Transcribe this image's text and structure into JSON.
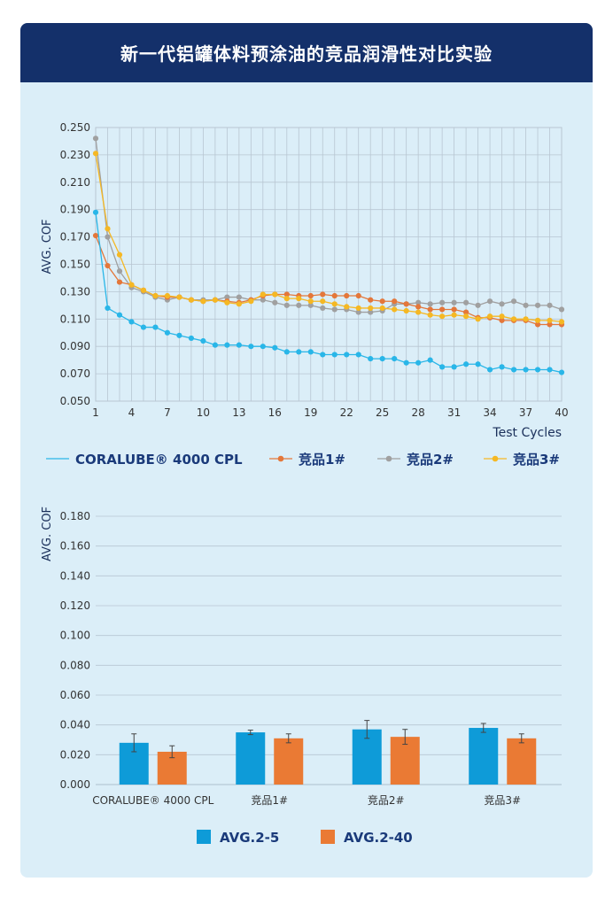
{
  "header": {
    "title": "新一代铝罐体料预涂油的竞品润滑性对比实验"
  },
  "colors": {
    "header_bg": "#14306a",
    "panel_bg": "#dbeef8",
    "coralube": "#29b6e8",
    "comp1": "#e4773a",
    "comp2": "#a0a0a0",
    "comp3": "#f5b824",
    "bar_a": "#0e9bd8",
    "bar_b": "#ea7a34"
  },
  "chart_data": [
    {
      "type": "line",
      "ylabel": "AVG. COF",
      "xlabel": "Test Cycles",
      "ylim": [
        0.05,
        0.25
      ],
      "yticks": [
        "0.050",
        "0.070",
        "0.090",
        "0.110",
        "0.130",
        "0.150",
        "0.170",
        "0.190",
        "0.210",
        "0.230",
        "0.250"
      ],
      "xlim": [
        1,
        40
      ],
      "xticks": [
        "1",
        "4",
        "7",
        "10",
        "13",
        "16",
        "19",
        "22",
        "25",
        "28",
        "31",
        "34",
        "37",
        "40"
      ],
      "grid": true,
      "legend": "bottom",
      "series": [
        {
          "name": "CORALUBE® 4000 CPL",
          "color": "#29b6e8",
          "marker": "circle",
          "values": [
            0.188,
            0.118,
            0.113,
            0.108,
            0.104,
            0.104,
            0.1,
            0.098,
            0.096,
            0.094,
            0.091,
            0.091,
            0.091,
            0.09,
            0.09,
            0.089,
            0.086,
            0.086,
            0.086,
            0.084,
            0.084,
            0.084,
            0.084,
            0.081,
            0.081,
            0.081,
            0.078,
            0.078,
            0.08,
            0.075,
            0.075,
            0.077,
            0.077,
            0.073,
            0.075,
            0.073,
            0.073,
            0.073,
            0.073,
            0.071
          ]
        },
        {
          "name": "竞品1#",
          "color": "#e4773a",
          "marker": "circle",
          "values": [
            0.171,
            0.149,
            0.137,
            0.135,
            0.131,
            0.127,
            0.126,
            0.126,
            0.124,
            0.123,
            0.124,
            0.123,
            0.122,
            0.124,
            0.127,
            0.128,
            0.128,
            0.127,
            0.127,
            0.128,
            0.127,
            0.127,
            0.127,
            0.124,
            0.123,
            0.123,
            0.121,
            0.119,
            0.117,
            0.117,
            0.117,
            0.115,
            0.111,
            0.111,
            0.109,
            0.109,
            0.109,
            0.106,
            0.106,
            0.106
          ]
        },
        {
          "name": "竞品2#",
          "color": "#a0a0a0",
          "marker": "circle",
          "values": [
            0.242,
            0.17,
            0.145,
            0.133,
            0.13,
            0.126,
            0.124,
            0.126,
            0.124,
            0.124,
            0.124,
            0.126,
            0.126,
            0.124,
            0.124,
            0.122,
            0.12,
            0.12,
            0.12,
            0.118,
            0.117,
            0.117,
            0.115,
            0.115,
            0.116,
            0.121,
            0.121,
            0.122,
            0.121,
            0.122,
            0.122,
            0.122,
            0.12,
            0.123,
            0.121,
            0.123,
            0.12,
            0.12,
            0.12,
            0.117
          ]
        },
        {
          "name": "竞品3#",
          "color": "#f5b824",
          "marker": "circle",
          "values": [
            0.231,
            0.176,
            0.157,
            0.135,
            0.131,
            0.127,
            0.127,
            0.126,
            0.124,
            0.123,
            0.124,
            0.122,
            0.121,
            0.123,
            0.128,
            0.128,
            0.125,
            0.125,
            0.123,
            0.123,
            0.121,
            0.119,
            0.118,
            0.118,
            0.118,
            0.117,
            0.116,
            0.115,
            0.113,
            0.112,
            0.113,
            0.112,
            0.11,
            0.112,
            0.112,
            0.11,
            0.11,
            0.109,
            0.109,
            0.108
          ]
        }
      ]
    },
    {
      "type": "bar",
      "ylabel": "AVG. COF",
      "ylim": [
        0,
        0.18
      ],
      "yticks": [
        "0.000",
        "0.020",
        "0.040",
        "0.060",
        "0.080",
        "0.100",
        "0.120",
        "0.140",
        "0.160",
        "0.180"
      ],
      "categories": [
        "CORALUBE® 4000 CPL",
        "竞品1#",
        "竞品2#",
        "竞品3#"
      ],
      "grid": true,
      "legend": "bottom",
      "series": [
        {
          "name": "AVG.2-5",
          "color": "#0e9bd8",
          "values": [
            0.028,
            0.035,
            0.037,
            0.038
          ],
          "errors": [
            0.006,
            0.0015,
            0.006,
            0.003
          ]
        },
        {
          "name": "AVG.2-40",
          "color": "#ea7a34",
          "values": [
            0.022,
            0.031,
            0.032,
            0.031
          ],
          "errors": [
            0.004,
            0.003,
            0.005,
            0.003
          ]
        }
      ]
    }
  ]
}
